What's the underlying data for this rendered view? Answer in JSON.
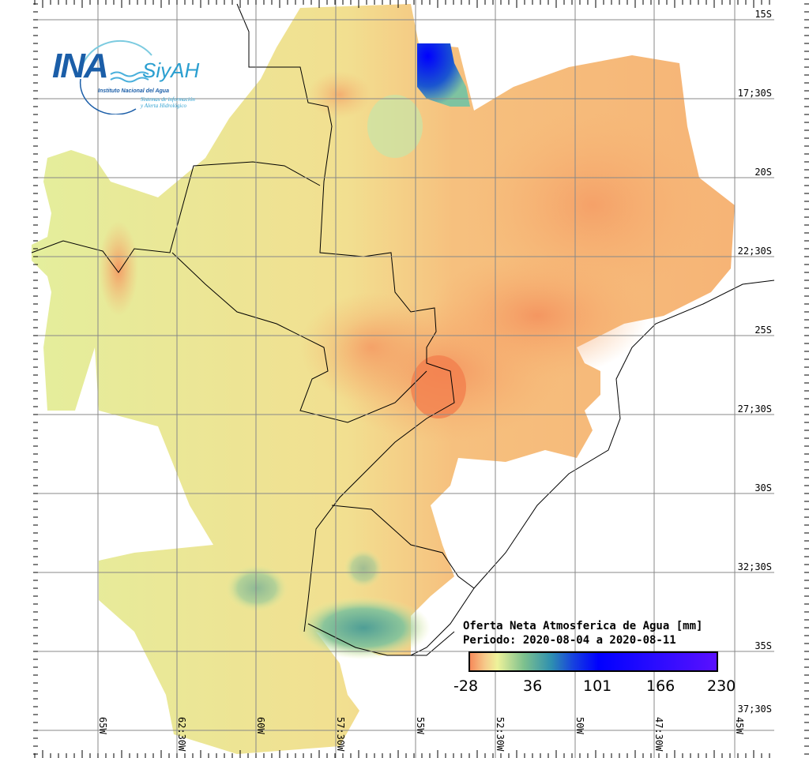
{
  "logo": {
    "name": "INA",
    "product": "SiyAH",
    "institute": "Instituto Nacional del Agua",
    "subtitle1": "Sistemas de información",
    "subtitle2": "y Alerta Hidrológico"
  },
  "legend": {
    "title": "Oferta Neta Atmosferica de Agua [mm]",
    "period": "Periodo: 2020-08-04 a 2020-08-11",
    "ticks": [
      "-28",
      "36",
      "101",
      "166",
      "230"
    ],
    "colors": [
      "#f68a5a",
      "#eef29a",
      "#2e8fb0",
      "#0000ff",
      "#5a10ff"
    ]
  },
  "lat_labels": [
    "15S",
    "17;30S",
    "20S",
    "22;30S",
    "25S",
    "27;30S",
    "30S",
    "32;30S",
    "35S",
    "37;30S"
  ],
  "lon_labels": [
    "65W",
    "62:30W",
    "60W",
    "57:30W",
    "55W",
    "52:30W",
    "50W",
    "47:30W",
    "45W"
  ]
}
